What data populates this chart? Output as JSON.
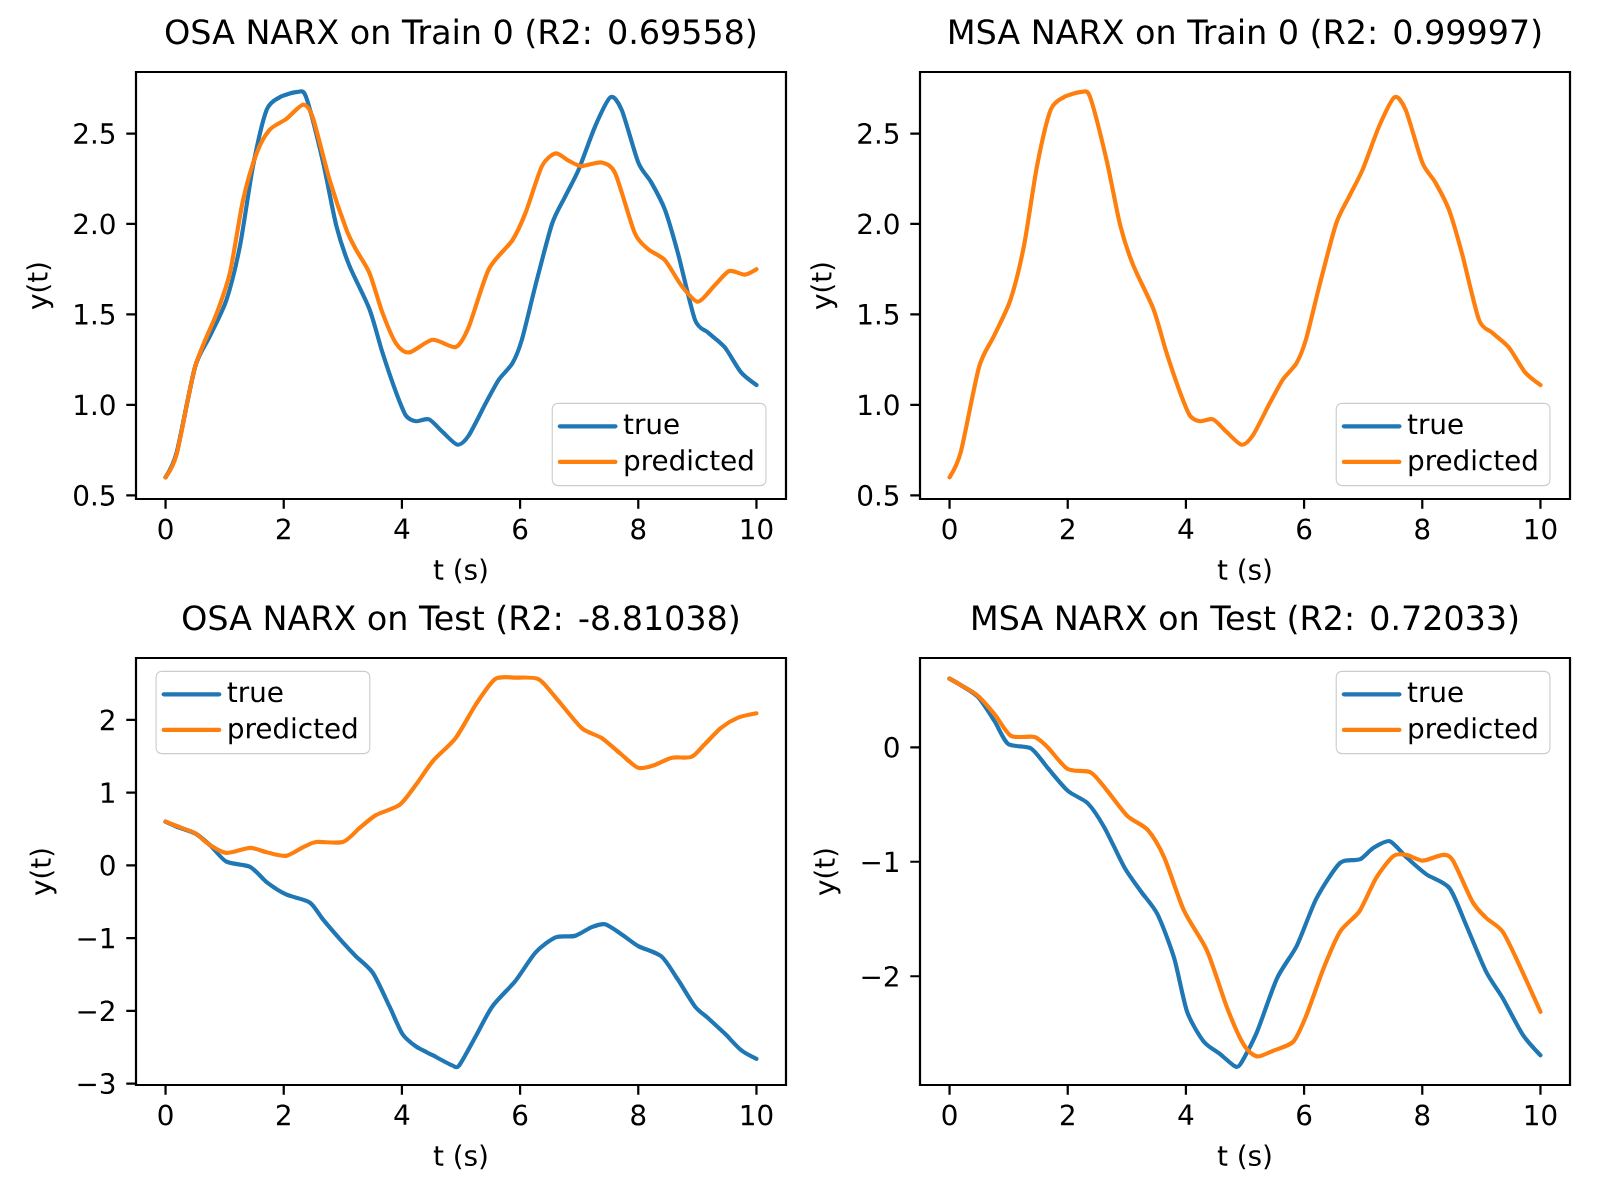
{
  "chart_data": [
    {
      "type": "line",
      "title": "OSA NARX on Train 0 (R2: 0.69558)",
      "xlabel": "t (s)",
      "ylabel": "y(t)",
      "xlim": [
        -0.5,
        10.5
      ],
      "ylim": [
        0.48,
        2.84
      ],
      "xticks": [
        0,
        2,
        4,
        6,
        8,
        10
      ],
      "yticks": [
        0.5,
        {
          "value": 1,
          "label": "1.0"
        },
        1.5,
        {
          "value": 2,
          "label": "2.0"
        },
        2.5
      ],
      "legend": "bottom right",
      "series": [
        {
          "name": "true",
          "color": "#1f77b4",
          "x": [
            0,
            0.19,
            0.5,
            0.75,
            1.03,
            1.26,
            1.48,
            1.71,
            1.93,
            2.24,
            2.38,
            2.66,
            2.89,
            3.11,
            3.45,
            3.67,
            3.9,
            4.07,
            4.24,
            4.46,
            4.69,
            4.94,
            5.13,
            5.42,
            5.64,
            5.87,
            6.03,
            6.26,
            6.54,
            6.76,
            6.99,
            7.27,
            7.53,
            7.72,
            8.0,
            8.22,
            8.45,
            8.67,
            8.96,
            9.18,
            9.46,
            9.74,
            10
          ],
          "values": [
            0.6,
            0.74,
            1.21,
            1.38,
            1.58,
            1.88,
            2.32,
            2.63,
            2.7,
            2.73,
            2.7,
            2.35,
            1.99,
            1.77,
            1.53,
            1.29,
            1.07,
            0.94,
            0.91,
            0.92,
            0.85,
            0.78,
            0.83,
            1.01,
            1.14,
            1.23,
            1.36,
            1.66,
            2.0,
            2.15,
            2.3,
            2.54,
            2.7,
            2.63,
            2.34,
            2.23,
            2.08,
            1.84,
            1.47,
            1.4,
            1.32,
            1.18,
            1.11
          ]
        },
        {
          "name": "predicted",
          "color": "#ff7f0e",
          "x": [
            0,
            0.19,
            0.5,
            0.87,
            1.09,
            1.31,
            1.54,
            1.76,
            2.04,
            2.33,
            2.49,
            2.78,
            3.06,
            3.22,
            3.45,
            3.67,
            3.9,
            4.12,
            4.52,
            4.91,
            5.13,
            5.47,
            5.87,
            6.09,
            6.37,
            6.6,
            6.82,
            7.04,
            7.38,
            7.61,
            7.94,
            8.17,
            8.45,
            8.73,
            9.01,
            9.29,
            9.54,
            9.8,
            10
          ],
          "values": [
            0.6,
            0.73,
            1.21,
            1.51,
            1.73,
            2.13,
            2.39,
            2.52,
            2.58,
            2.66,
            2.59,
            2.24,
            1.97,
            1.86,
            1.73,
            1.51,
            1.34,
            1.29,
            1.36,
            1.32,
            1.43,
            1.75,
            1.91,
            2.06,
            2.32,
            2.39,
            2.35,
            2.32,
            2.34,
            2.28,
            1.95,
            1.86,
            1.8,
            1.66,
            1.57,
            1.66,
            1.74,
            1.72,
            1.75
          ]
        }
      ]
    },
    {
      "type": "line",
      "title": "MSA NARX on Train 0 (R2: 0.99997)",
      "xlabel": "t (s)",
      "ylabel": "y(t)",
      "xlim": [
        -0.5,
        10.5
      ],
      "ylim": [
        0.48,
        2.84
      ],
      "xticks": [
        0,
        2,
        4,
        6,
        8,
        10
      ],
      "yticks": [
        0.5,
        {
          "value": 1,
          "label": "1.0"
        },
        1.5,
        {
          "value": 2,
          "label": "2.0"
        },
        2.5
      ],
      "legend": "bottom right",
      "series": [
        {
          "name": "true",
          "color": "#1f77b4"
        },
        {
          "name": "predicted",
          "color": "#ff7f0e",
          "x": [
            0,
            0.19,
            0.5,
            0.75,
            1.03,
            1.26,
            1.48,
            1.71,
            1.93,
            2.24,
            2.38,
            2.66,
            2.89,
            3.11,
            3.45,
            3.67,
            3.9,
            4.07,
            4.24,
            4.46,
            4.69,
            4.94,
            5.13,
            5.42,
            5.64,
            5.87,
            6.03,
            6.26,
            6.54,
            6.76,
            6.99,
            7.27,
            7.53,
            7.72,
            8.0,
            8.22,
            8.45,
            8.67,
            8.96,
            9.18,
            9.46,
            9.74,
            10
          ],
          "values": [
            0.6,
            0.74,
            1.21,
            1.38,
            1.58,
            1.88,
            2.32,
            2.63,
            2.7,
            2.73,
            2.7,
            2.35,
            1.99,
            1.77,
            1.53,
            1.29,
            1.07,
            0.94,
            0.91,
            0.92,
            0.85,
            0.78,
            0.83,
            1.01,
            1.14,
            1.23,
            1.36,
            1.66,
            2.0,
            2.15,
            2.3,
            2.54,
            2.7,
            2.63,
            2.34,
            2.23,
            2.08,
            1.84,
            1.47,
            1.4,
            1.32,
            1.18,
            1.11
          ]
        }
      ]
    },
    {
      "type": "line",
      "title": "OSA NARX on Test (R2: -8.81038)",
      "xlabel": "t (s)",
      "ylabel": "y(t)",
      "xlim": [
        -0.5,
        10.5
      ],
      "ylim": [
        -3.02,
        2.85
      ],
      "xticks": [
        0,
        2,
        4,
        6,
        8,
        10
      ],
      "yticks": [
        {
          "value": -3,
          "label": "−3"
        },
        {
          "value": -2,
          "label": "−2"
        },
        {
          "value": -1,
          "label": "−1"
        },
        0,
        1,
        2
      ],
      "legend": "top left",
      "series": [
        {
          "name": "true",
          "color": "#1f77b4",
          "x": [
            0,
            0.19,
            0.5,
            0.75,
            1.03,
            1.43,
            1.71,
            2.04,
            2.44,
            2.66,
            3.0,
            3.22,
            3.51,
            3.79,
            4.01,
            4.24,
            4.52,
            4.85,
            4.97,
            5.25,
            5.53,
            5.92,
            6.26,
            6.6,
            6.93,
            7.21,
            7.44,
            7.72,
            8.0,
            8.39,
            8.67,
            8.96,
            9.18,
            9.46,
            9.74,
            10
          ],
          "values": [
            0.6,
            0.53,
            0.44,
            0.28,
            0.05,
            -0.02,
            -0.23,
            -0.4,
            -0.51,
            -0.74,
            -1.06,
            -1.25,
            -1.48,
            -1.94,
            -2.32,
            -2.49,
            -2.61,
            -2.75,
            -2.75,
            -2.35,
            -1.94,
            -1.59,
            -1.2,
            -0.99,
            -0.97,
            -0.85,
            -0.81,
            -0.95,
            -1.11,
            -1.25,
            -1.57,
            -1.94,
            -2.1,
            -2.31,
            -2.54,
            -2.66
          ]
        },
        {
          "name": "predicted",
          "color": "#ff7f0e",
          "x": [
            0,
            0.19,
            0.5,
            0.75,
            1.03,
            1.43,
            1.71,
            2.04,
            2.33,
            2.55,
            3.0,
            3.28,
            3.56,
            3.96,
            4.24,
            4.52,
            4.91,
            5.25,
            5.58,
            5.92,
            6.31,
            6.6,
            7.04,
            7.38,
            7.72,
            8.0,
            8.28,
            8.57,
            8.9,
            9.12,
            9.4,
            9.69,
            10
          ],
          "values": [
            0.6,
            0.54,
            0.44,
            0.28,
            0.17,
            0.24,
            0.18,
            0.13,
            0.25,
            0.32,
            0.32,
            0.51,
            0.69,
            0.83,
            1.11,
            1.43,
            1.75,
            2.21,
            2.56,
            2.58,
            2.56,
            2.31,
            1.89,
            1.75,
            1.52,
            1.34,
            1.38,
            1.48,
            1.49,
            1.66,
            1.89,
            2.03,
            2.09
          ]
        }
      ]
    },
    {
      "type": "line",
      "title": "MSA NARX on Test (R2: 0.72033)",
      "xlabel": "t (s)",
      "ylabel": "y(t)",
      "xlim": [
        -0.5,
        10.5
      ],
      "ylim": [
        -2.95,
        0.78
      ],
      "xticks": [
        0,
        2,
        4,
        6,
        8,
        10
      ],
      "yticks": [
        {
          "value": -2,
          "label": "−2"
        },
        {
          "value": -1,
          "label": "−1"
        },
        0
      ],
      "legend": "top right",
      "series": [
        {
          "name": "true",
          "color": "#1f77b4",
          "x": [
            0,
            0.2,
            0.48,
            0.76,
            0.99,
            1.38,
            1.66,
            2.0,
            2.34,
            2.62,
            2.96,
            3.24,
            3.52,
            3.8,
            4.02,
            4.3,
            4.58,
            4.81,
            4.92,
            5.2,
            5.54,
            5.88,
            6.21,
            6.61,
            6.94,
            7.17,
            7.45,
            7.73,
            8.07,
            8.46,
            8.74,
            9.08,
            9.36,
            9.7,
            10
          ],
          "values": [
            0.6,
            0.54,
            0.44,
            0.23,
            0.03,
            -0.01,
            -0.18,
            -0.38,
            -0.49,
            -0.7,
            -1.05,
            -1.26,
            -1.46,
            -1.84,
            -2.31,
            -2.57,
            -2.68,
            -2.78,
            -2.77,
            -2.49,
            -2.02,
            -1.73,
            -1.32,
            -1.01,
            -0.98,
            -0.88,
            -0.82,
            -0.96,
            -1.11,
            -1.23,
            -1.55,
            -1.96,
            -2.19,
            -2.51,
            -2.69
          ]
        },
        {
          "name": "predicted",
          "color": "#ff7f0e",
          "x": [
            0,
            0.2,
            0.48,
            0.76,
            1.04,
            1.44,
            1.66,
            2.0,
            2.39,
            2.67,
            3.01,
            3.35,
            3.63,
            3.97,
            4.36,
            4.7,
            4.98,
            5.2,
            5.48,
            5.82,
            6.04,
            6.33,
            6.61,
            6.94,
            7.22,
            7.51,
            7.73,
            8.01,
            8.35,
            8.52,
            8.85,
            9.08,
            9.36,
            9.64,
            10
          ],
          "values": [
            0.6,
            0.54,
            0.45,
            0.29,
            0.1,
            0.09,
            0.0,
            -0.19,
            -0.22,
            -0.38,
            -0.6,
            -0.72,
            -0.96,
            -1.43,
            -1.78,
            -2.28,
            -2.6,
            -2.7,
            -2.65,
            -2.57,
            -2.34,
            -1.93,
            -1.61,
            -1.43,
            -1.14,
            -0.95,
            -0.94,
            -0.99,
            -0.94,
            -0.99,
            -1.35,
            -1.49,
            -1.61,
            -1.9,
            -2.31
          ]
        }
      ]
    }
  ]
}
